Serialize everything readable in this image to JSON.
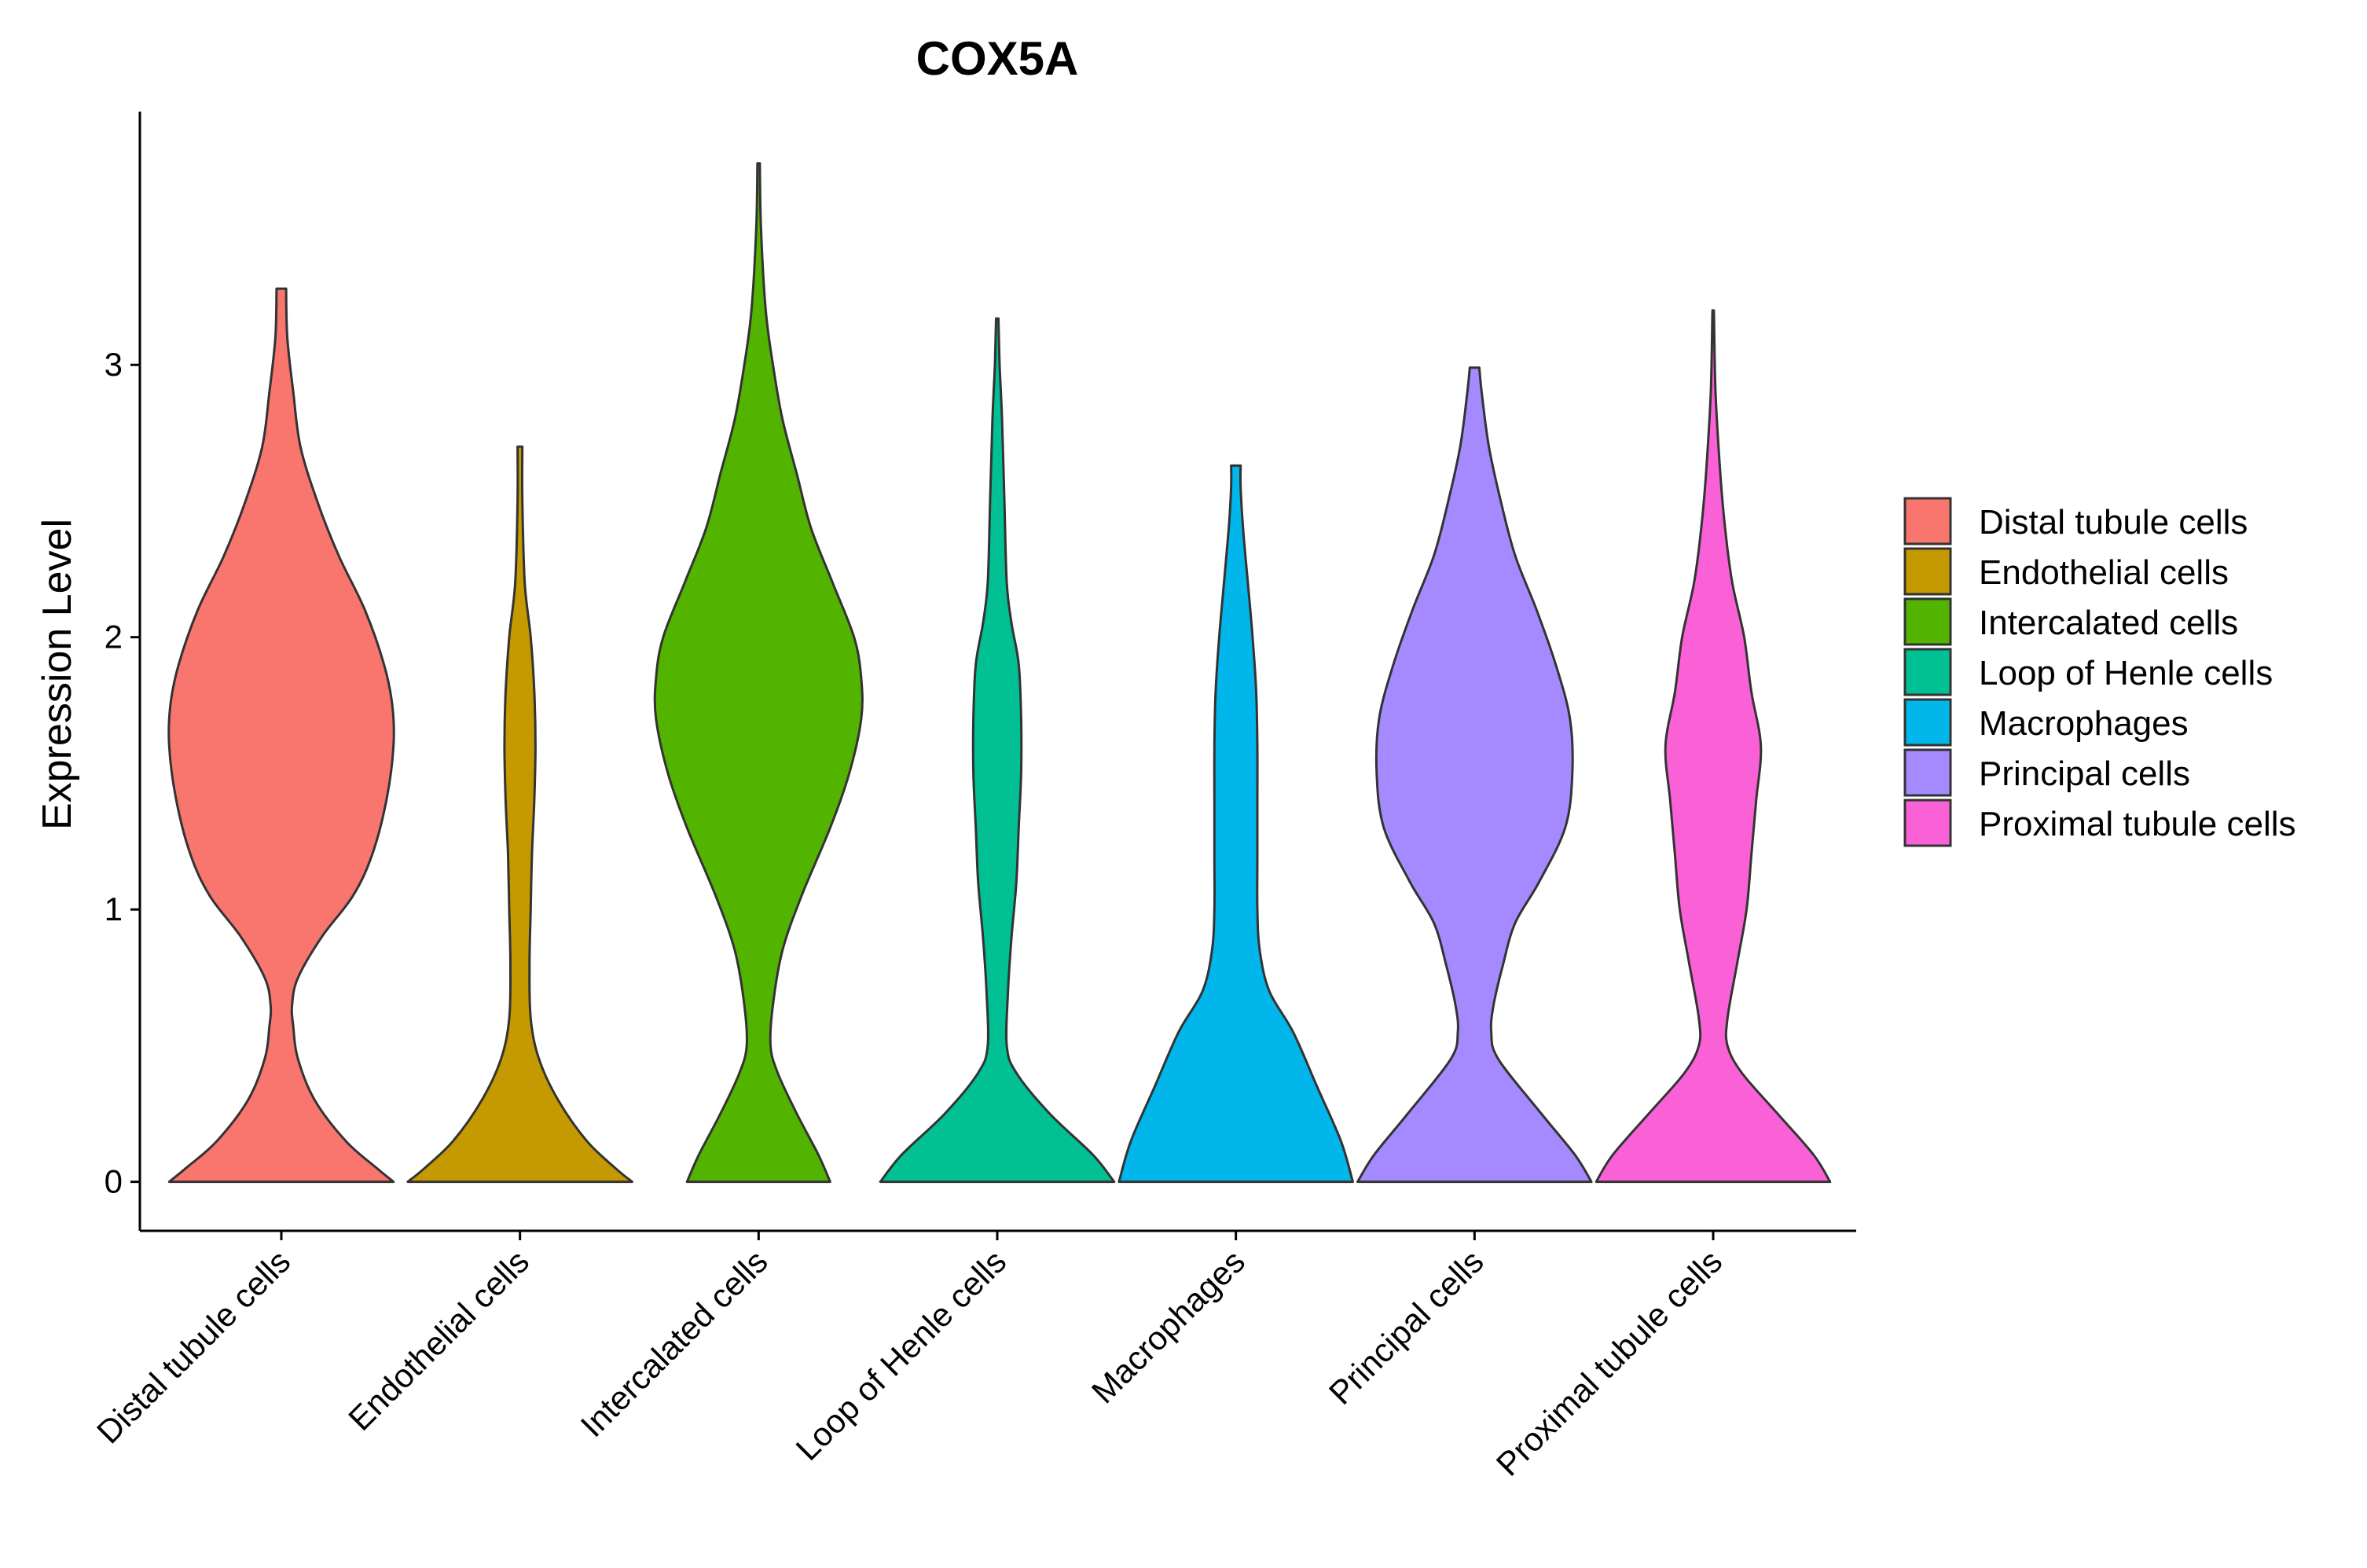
{
  "chart_data": {
    "type": "violin",
    "title": "COX5A",
    "xlabel": "",
    "ylabel": "Expression Level",
    "ylim": [
      -0.18,
      3.93
    ],
    "yticks": [
      0,
      1,
      2,
      3
    ],
    "categories": [
      "Distal tubule cells",
      "Endothelial cells",
      "Intercalated cells",
      "Loop of Henle cells",
      "Macrophages",
      "Principal cells",
      "Proximal tubule cells"
    ],
    "colors": [
      "#F8766D",
      "#C49A00",
      "#53B400",
      "#00C094",
      "#00B6EB",
      "#A58AFF",
      "#FB61D7"
    ],
    "legend": {
      "position": "right",
      "entries": [
        "Distal tubule cells",
        "Endothelial cells",
        "Intercalated cells",
        "Loop of Henle cells",
        "Macrophages",
        "Principal cells",
        "Proximal tubule cells"
      ]
    },
    "max_values": [
      3.28,
      2.7,
      3.74,
      3.17,
      2.63,
      2.99,
      3.2
    ],
    "density_profiles": [
      [
        [
          0,
          0.47
        ],
        [
          0.05,
          0.4
        ],
        [
          0.15,
          0.27
        ],
        [
          0.3,
          0.14
        ],
        [
          0.45,
          0.07
        ],
        [
          0.57,
          0.05
        ],
        [
          0.65,
          0.045
        ],
        [
          0.75,
          0.07
        ],
        [
          0.9,
          0.17
        ],
        [
          1.05,
          0.3
        ],
        [
          1.2,
          0.38
        ],
        [
          1.4,
          0.44
        ],
        [
          1.6,
          0.47
        ],
        [
          1.75,
          0.465
        ],
        [
          1.9,
          0.43
        ],
        [
          2.1,
          0.35
        ],
        [
          2.3,
          0.24
        ],
        [
          2.5,
          0.15
        ],
        [
          2.7,
          0.08
        ],
        [
          2.9,
          0.05
        ],
        [
          3.1,
          0.025
        ],
        [
          3.28,
          0.02
        ]
      ],
      [
        [
          0,
          0.47
        ],
        [
          0.05,
          0.4
        ],
        [
          0.15,
          0.28
        ],
        [
          0.3,
          0.16
        ],
        [
          0.45,
          0.08
        ],
        [
          0.6,
          0.045
        ],
        [
          0.8,
          0.04
        ],
        [
          1.0,
          0.045
        ],
        [
          1.2,
          0.05
        ],
        [
          1.4,
          0.06
        ],
        [
          1.6,
          0.065
        ],
        [
          1.8,
          0.06
        ],
        [
          2.0,
          0.045
        ],
        [
          2.2,
          0.02
        ],
        [
          2.5,
          0.01
        ],
        [
          2.7,
          0.01
        ]
      ],
      [
        [
          0,
          0.3
        ],
        [
          0.1,
          0.25
        ],
        [
          0.25,
          0.16
        ],
        [
          0.4,
          0.08
        ],
        [
          0.5,
          0.05
        ],
        [
          0.65,
          0.06
        ],
        [
          0.85,
          0.1
        ],
        [
          1.05,
          0.18
        ],
        [
          1.3,
          0.3
        ],
        [
          1.5,
          0.38
        ],
        [
          1.7,
          0.43
        ],
        [
          1.85,
          0.43
        ],
        [
          2.0,
          0.4
        ],
        [
          2.2,
          0.31
        ],
        [
          2.4,
          0.22
        ],
        [
          2.6,
          0.16
        ],
        [
          2.8,
          0.1
        ],
        [
          3.0,
          0.06
        ],
        [
          3.2,
          0.03
        ],
        [
          3.5,
          0.01
        ],
        [
          3.74,
          0.005
        ]
      ],
      [
        [
          0,
          0.49
        ],
        [
          0.1,
          0.4
        ],
        [
          0.25,
          0.22
        ],
        [
          0.4,
          0.08
        ],
        [
          0.5,
          0.04
        ],
        [
          0.7,
          0.045
        ],
        [
          0.9,
          0.06
        ],
        [
          1.1,
          0.08
        ],
        [
          1.3,
          0.09
        ],
        [
          1.5,
          0.1
        ],
        [
          1.7,
          0.1
        ],
        [
          1.9,
          0.09
        ],
        [
          2.05,
          0.06
        ],
        [
          2.2,
          0.04
        ],
        [
          2.5,
          0.03
        ],
        [
          2.8,
          0.02
        ],
        [
          3.0,
          0.01
        ],
        [
          3.17,
          0.005
        ]
      ],
      [
        [
          0,
          0.49
        ],
        [
          0.15,
          0.44
        ],
        [
          0.35,
          0.34
        ],
        [
          0.55,
          0.24
        ],
        [
          0.7,
          0.14
        ],
        [
          0.85,
          0.1
        ],
        [
          1.0,
          0.09
        ],
        [
          1.2,
          0.09
        ],
        [
          1.4,
          0.09
        ],
        [
          1.6,
          0.09
        ],
        [
          1.8,
          0.085
        ],
        [
          2.0,
          0.07
        ],
        [
          2.2,
          0.05
        ],
        [
          2.4,
          0.03
        ],
        [
          2.55,
          0.02
        ],
        [
          2.63,
          0.02
        ]
      ],
      [
        [
          0,
          0.49
        ],
        [
          0.1,
          0.42
        ],
        [
          0.25,
          0.28
        ],
        [
          0.45,
          0.1
        ],
        [
          0.55,
          0.07
        ],
        [
          0.65,
          0.08
        ],
        [
          0.8,
          0.12
        ],
        [
          0.95,
          0.17
        ],
        [
          1.1,
          0.27
        ],
        [
          1.3,
          0.38
        ],
        [
          1.5,
          0.41
        ],
        [
          1.7,
          0.4
        ],
        [
          1.9,
          0.34
        ],
        [
          2.1,
          0.26
        ],
        [
          2.3,
          0.17
        ],
        [
          2.5,
          0.11
        ],
        [
          2.7,
          0.06
        ],
        [
          2.9,
          0.03
        ],
        [
          2.99,
          0.02
        ]
      ],
      [
        [
          0,
          0.49
        ],
        [
          0.1,
          0.42
        ],
        [
          0.25,
          0.27
        ],
        [
          0.4,
          0.12
        ],
        [
          0.5,
          0.06
        ],
        [
          0.6,
          0.06
        ],
        [
          0.8,
          0.1
        ],
        [
          1.0,
          0.14
        ],
        [
          1.2,
          0.16
        ],
        [
          1.4,
          0.18
        ],
        [
          1.6,
          0.2
        ],
        [
          1.8,
          0.16
        ],
        [
          2.0,
          0.13
        ],
        [
          2.2,
          0.08
        ],
        [
          2.4,
          0.05
        ],
        [
          2.6,
          0.03
        ],
        [
          2.9,
          0.01
        ],
        [
          3.2,
          0.003
        ]
      ]
    ]
  }
}
